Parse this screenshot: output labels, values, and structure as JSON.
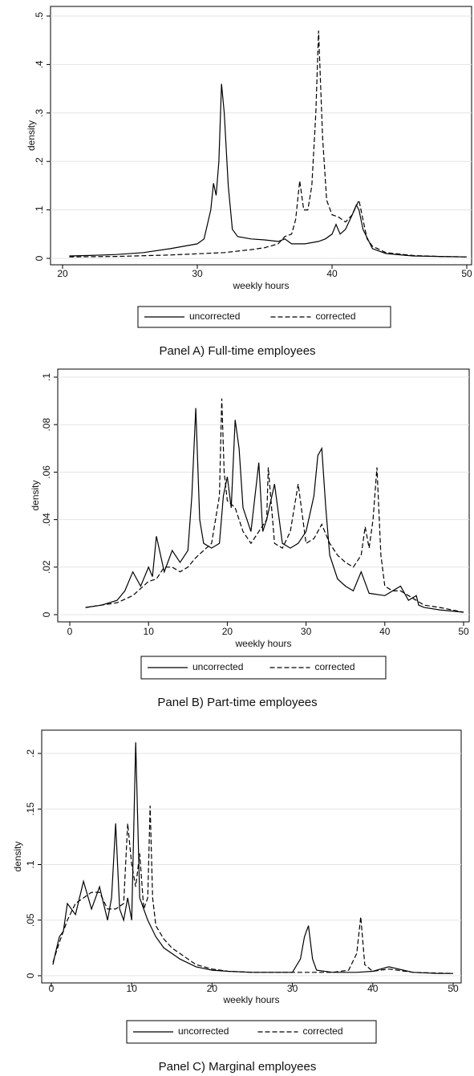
{
  "chart_data": [
    {
      "type": "line",
      "xlabel": "weekly hours",
      "ylabel": "density",
      "caption": "Panel A) Full-time employees",
      "xlim": [
        20,
        50
      ],
      "xticks": [
        20,
        30,
        40,
        50
      ],
      "ylim": [
        0,
        0.5
      ],
      "yticks": [
        0,
        {
          "value": 0.1,
          "label": ".1"
        },
        {
          "value": 0.2,
          "label": ".2"
        },
        {
          "value": 0.3,
          "label": ".3"
        },
        {
          "value": 0.4,
          "label": ".4"
        },
        {
          "value": 0.5,
          "label": ".5"
        }
      ],
      "grid": true,
      "series": [
        {
          "name": "uncorrected",
          "color": "#000000",
          "dash": false,
          "x": [
            20.5,
            22,
            24,
            26,
            28,
            29,
            30,
            30.5,
            31,
            31.2,
            31.4,
            31.6,
            31.8,
            32,
            32.3,
            32.6,
            33,
            34,
            35,
            36,
            36.5,
            37,
            38,
            39,
            39.5,
            40,
            40.3,
            40.6,
            41,
            41.5,
            41.8,
            42,
            42.3,
            43,
            44,
            46,
            48,
            50
          ],
          "values": [
            0.005,
            0.006,
            0.008,
            0.012,
            0.02,
            0.025,
            0.03,
            0.04,
            0.1,
            0.155,
            0.13,
            0.2,
            0.36,
            0.3,
            0.15,
            0.06,
            0.045,
            0.04,
            0.038,
            0.035,
            0.04,
            0.03,
            0.03,
            0.035,
            0.04,
            0.05,
            0.07,
            0.05,
            0.06,
            0.09,
            0.11,
            0.1,
            0.06,
            0.02,
            0.01,
            0.005,
            0.004,
            0.003
          ]
        },
        {
          "name": "corrected",
          "color": "#000000",
          "dash": true,
          "x": [
            20.5,
            24,
            28,
            32,
            34,
            35,
            36,
            36.5,
            37,
            37.3,
            37.6,
            37.9,
            38.2,
            38.5,
            38.8,
            39,
            39.3,
            39.6,
            40,
            40.5,
            41,
            41.5,
            42,
            42.3,
            42.6,
            43,
            44,
            46,
            48,
            50
          ],
          "values": [
            0.003,
            0.004,
            0.007,
            0.012,
            0.018,
            0.022,
            0.03,
            0.045,
            0.05,
            0.08,
            0.16,
            0.1,
            0.1,
            0.15,
            0.3,
            0.47,
            0.25,
            0.12,
            0.09,
            0.085,
            0.075,
            0.09,
            0.12,
            0.08,
            0.04,
            0.025,
            0.012,
            0.006,
            0.004,
            0.003
          ]
        }
      ]
    },
    {
      "type": "line",
      "xlabel": "weekly hours",
      "ylabel": "density",
      "caption": "Panel B) Part-time employees",
      "xlim": [
        0,
        50
      ],
      "xticks": [
        0,
        10,
        20,
        30,
        40,
        50
      ],
      "ylim": [
        0,
        0.1
      ],
      "yticks": [
        0,
        {
          "value": 0.02,
          "label": ".02"
        },
        {
          "value": 0.04,
          "label": ".04"
        },
        {
          "value": 0.06,
          "label": ".06"
        },
        {
          "value": 0.08,
          "label": ".08"
        },
        {
          "value": 0.1,
          "label": ".1"
        }
      ],
      "grid": true,
      "series": [
        {
          "name": "uncorrected",
          "color": "#000000",
          "dash": false,
          "x": [
            2,
            4,
            6,
            7,
            8,
            9,
            10,
            10.5,
            11,
            12,
            13,
            14,
            15,
            15.5,
            16,
            16.5,
            17,
            18,
            19,
            19.5,
            20,
            20.5,
            21,
            21.5,
            22,
            23,
            24,
            24.5,
            25,
            26,
            27,
            28,
            29,
            30,
            31,
            31.5,
            32,
            32.5,
            33,
            34,
            35,
            36,
            37,
            38,
            40,
            41,
            42,
            43,
            44,
            44.3,
            45,
            47,
            50
          ],
          "values": [
            0.003,
            0.004,
            0.006,
            0.01,
            0.018,
            0.012,
            0.02,
            0.016,
            0.033,
            0.018,
            0.027,
            0.022,
            0.027,
            0.05,
            0.087,
            0.04,
            0.03,
            0.028,
            0.03,
            0.05,
            0.058,
            0.045,
            0.082,
            0.07,
            0.045,
            0.035,
            0.064,
            0.035,
            0.04,
            0.055,
            0.03,
            0.028,
            0.03,
            0.035,
            0.05,
            0.067,
            0.07,
            0.045,
            0.025,
            0.015,
            0.012,
            0.01,
            0.018,
            0.009,
            0.008,
            0.01,
            0.012,
            0.006,
            0.008,
            0.004,
            0.003,
            0.002,
            0.001
          ]
        },
        {
          "name": "corrected",
          "color": "#000000",
          "dash": true,
          "x": [
            2,
            4,
            6,
            8,
            10,
            11,
            12,
            13,
            14,
            15,
            16,
            17,
            18,
            19,
            19.3,
            19.6,
            20,
            21,
            22,
            23,
            24,
            25,
            25.2,
            26,
            27,
            28,
            29,
            30,
            31,
            32,
            33,
            34,
            35,
            36,
            37,
            37.5,
            38,
            38.5,
            39,
            39.5,
            40,
            41,
            42,
            43,
            45,
            47,
            50
          ],
          "values": [
            0.003,
            0.004,
            0.005,
            0.008,
            0.014,
            0.015,
            0.02,
            0.02,
            0.018,
            0.02,
            0.024,
            0.027,
            0.03,
            0.05,
            0.091,
            0.06,
            0.048,
            0.045,
            0.035,
            0.03,
            0.035,
            0.04,
            0.062,
            0.03,
            0.028,
            0.035,
            0.055,
            0.03,
            0.032,
            0.038,
            0.03,
            0.025,
            0.022,
            0.02,
            0.025,
            0.037,
            0.028,
            0.04,
            0.062,
            0.025,
            0.012,
            0.01,
            0.01,
            0.008,
            0.004,
            0.003,
            0.001
          ]
        }
      ]
    },
    {
      "type": "line",
      "xlabel": "weekly hours",
      "ylabel": "density",
      "caption": "Panel C) Marginal employees",
      "xlim": [
        0,
        50
      ],
      "xticks": [
        0,
        10,
        20,
        30,
        40,
        50
      ],
      "ylim": [
        0,
        0.2
      ],
      "yticks": [
        0,
        {
          "value": 0.05,
          "label": ".05"
        },
        {
          "value": 0.1,
          "label": ".1"
        },
        {
          "value": 0.15,
          "label": ".15"
        },
        {
          "value": 0.2,
          "label": ".2"
        }
      ],
      "grid": true,
      "series": [
        {
          "name": "uncorrected",
          "color": "#000000",
          "dash": false,
          "x": [
            0.2,
            0.5,
            1,
            1.5,
            2,
            3,
            4,
            5,
            6,
            7,
            7.5,
            8,
            8.5,
            9,
            9.5,
            10,
            10.5,
            11,
            11.5,
            12,
            13,
            14,
            15,
            16,
            18,
            20,
            22,
            25,
            28,
            30,
            31,
            31.5,
            32,
            32.5,
            33,
            35,
            38,
            40,
            42,
            45,
            48,
            50
          ],
          "values": [
            0.01,
            0.02,
            0.035,
            0.04,
            0.065,
            0.055,
            0.085,
            0.06,
            0.08,
            0.05,
            0.07,
            0.137,
            0.06,
            0.05,
            0.07,
            0.05,
            0.21,
            0.07,
            0.06,
            0.05,
            0.035,
            0.025,
            0.02,
            0.015,
            0.008,
            0.005,
            0.004,
            0.003,
            0.003,
            0.003,
            0.015,
            0.035,
            0.045,
            0.015,
            0.005,
            0.003,
            0.003,
            0.004,
            0.008,
            0.003,
            0.002,
            0.002
          ]
        },
        {
          "name": "corrected",
          "color": "#000000",
          "dash": true,
          "x": [
            0.2,
            1,
            2,
            3,
            4,
            5,
            6,
            7,
            8,
            9,
            9.5,
            10,
            10.5,
            11,
            11.5,
            12,
            12.3,
            12.6,
            13,
            14,
            15,
            16,
            18,
            20,
            22,
            25,
            30,
            35,
            37,
            38,
            38.5,
            39,
            40,
            42,
            45,
            50
          ],
          "values": [
            0.012,
            0.03,
            0.05,
            0.065,
            0.07,
            0.075,
            0.075,
            0.06,
            0.06,
            0.065,
            0.137,
            0.1,
            0.08,
            0.11,
            0.06,
            0.07,
            0.153,
            0.07,
            0.045,
            0.033,
            0.025,
            0.02,
            0.01,
            0.006,
            0.004,
            0.003,
            0.003,
            0.003,
            0.005,
            0.02,
            0.053,
            0.01,
            0.004,
            0.006,
            0.003,
            0.002
          ]
        }
      ]
    }
  ]
}
